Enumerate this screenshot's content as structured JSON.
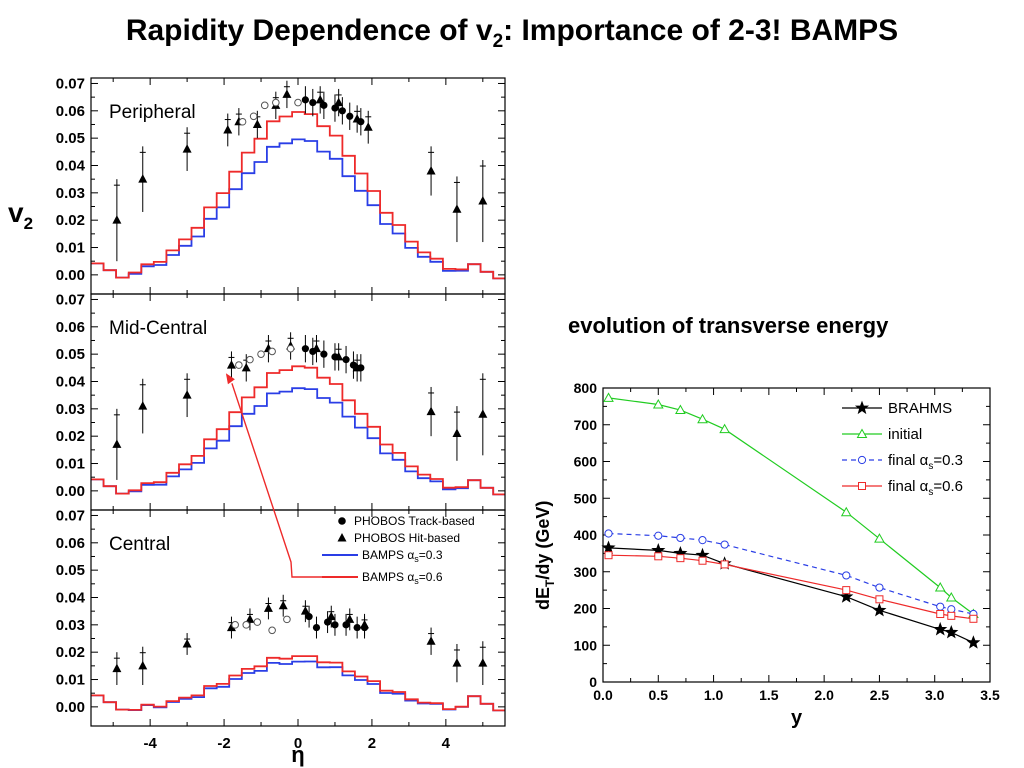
{
  "slide": {
    "title_main": "Rapidity Dependence of v",
    "title_sub": "2",
    "title_rest": ": Importance of 2-3! BAMPS",
    "right_title": "evolution of transverse energy"
  },
  "chart_data": [
    {
      "id": "v2-eta",
      "type": "line",
      "x_label": "η",
      "y_label": "v",
      "y_label_sub": "2",
      "xlim": [
        -5.6,
        5.6
      ],
      "ylim": [
        -0.007,
        0.072
      ],
      "x_ticks": [
        -4,
        -2,
        0,
        2,
        4
      ],
      "x_tick_labels": [
        "-4",
        "-2",
        "0",
        "2",
        "4"
      ],
      "y_ticks": [
        0.0,
        0.01,
        0.02,
        0.03,
        0.04,
        0.05,
        0.06,
        0.07
      ],
      "y_tick_labels": [
        "0.00",
        "0.01",
        "0.02",
        "0.03",
        "0.04",
        "0.05",
        "0.06",
        "0.07"
      ],
      "legend": {
        "track": "PHOBOS Track-based",
        "hit": "PHOBOS Hit-based",
        "bamps03_prefix": "BAMPS α",
        "bamps03_sub": "s",
        "bamps03_suffix": "=0.3",
        "bamps06_prefix": "BAMPS α",
        "bamps06_sub": "s",
        "bamps06_suffix": "=0.6"
      },
      "colors": {
        "bamps03": "#2a3ee6",
        "bamps06": "#ee2a2a"
      },
      "panels": [
        {
          "label": "Peripheral",
          "red_peak": 0.061,
          "blue_peak": 0.051,
          "hit": [
            [
              -4.9,
              0.02,
              0.015
            ],
            [
              -4.2,
              0.035,
              0.012
            ],
            [
              -3.0,
              0.046,
              0.008
            ],
            [
              -1.9,
              0.053,
              0.006
            ],
            [
              -1.6,
              0.056,
              0.005
            ],
            [
              -1.1,
              0.055,
              0.005
            ],
            [
              -0.6,
              0.062,
              0.005
            ],
            [
              -0.3,
              0.066,
              0.005
            ],
            [
              0.6,
              0.064,
              0.005
            ],
            [
              1.1,
              0.063,
              0.005
            ],
            [
              1.6,
              0.057,
              0.005
            ],
            [
              1.9,
              0.054,
              0.006
            ],
            [
              3.6,
              0.038,
              0.009
            ],
            [
              4.3,
              0.024,
              0.012
            ],
            [
              5.0,
              0.027,
              0.015
            ]
          ],
          "track": [
            [
              0.2,
              0.064,
              0.005
            ],
            [
              0.4,
              0.063,
              0.005
            ],
            [
              0.7,
              0.062,
              0.005
            ],
            [
              1.0,
              0.061,
              0.005
            ],
            [
              1.2,
              0.06,
              0.005
            ],
            [
              1.4,
              0.058,
              0.005
            ],
            [
              1.7,
              0.056,
              0.005
            ]
          ],
          "open": [
            [
              -1.5,
              0.056
            ],
            [
              -1.2,
              0.058
            ],
            [
              -0.9,
              0.062
            ],
            [
              -0.6,
              0.063
            ],
            [
              0.0,
              0.063
            ]
          ]
        },
        {
          "label": "Mid-Central",
          "red_peak": 0.047,
          "blue_peak": 0.039,
          "hit": [
            [
              -4.9,
              0.017,
              0.013
            ],
            [
              -4.2,
              0.031,
              0.01
            ],
            [
              -3.0,
              0.035,
              0.008
            ],
            [
              -1.8,
              0.046,
              0.005
            ],
            [
              -1.4,
              0.045,
              0.005
            ],
            [
              -0.8,
              0.052,
              0.005
            ],
            [
              -0.2,
              0.053,
              0.005
            ],
            [
              0.5,
              0.052,
              0.005
            ],
            [
              1.1,
              0.049,
              0.005
            ],
            [
              1.6,
              0.045,
              0.005
            ],
            [
              3.6,
              0.029,
              0.009
            ],
            [
              4.3,
              0.021,
              0.01
            ],
            [
              5.0,
              0.028,
              0.015
            ]
          ],
          "track": [
            [
              0.2,
              0.052,
              0.005
            ],
            [
              0.4,
              0.051,
              0.005
            ],
            [
              0.7,
              0.05,
              0.005
            ],
            [
              1.0,
              0.049,
              0.005
            ],
            [
              1.3,
              0.048,
              0.005
            ],
            [
              1.5,
              0.046,
              0.005
            ],
            [
              1.7,
              0.045,
              0.005
            ]
          ],
          "open": [
            [
              -1.6,
              0.046
            ],
            [
              -1.3,
              0.048
            ],
            [
              -1.0,
              0.05
            ],
            [
              -0.7,
              0.051
            ],
            [
              -0.2,
              0.052
            ]
          ]
        },
        {
          "label": "Central",
          "red_peak": 0.02,
          "blue_peak": 0.018,
          "hit": [
            [
              -4.9,
              0.014,
              0.006
            ],
            [
              -4.2,
              0.015,
              0.007
            ],
            [
              -3.0,
              0.023,
              0.004
            ],
            [
              -1.8,
              0.029,
              0.004
            ],
            [
              -1.3,
              0.032,
              0.004
            ],
            [
              -0.8,
              0.036,
              0.004
            ],
            [
              -0.4,
              0.037,
              0.004
            ],
            [
              0.2,
              0.035,
              0.004
            ],
            [
              0.9,
              0.033,
              0.004
            ],
            [
              1.4,
              0.032,
              0.004
            ],
            [
              1.8,
              0.03,
              0.004
            ],
            [
              3.6,
              0.024,
              0.005
            ],
            [
              4.3,
              0.016,
              0.007
            ],
            [
              5.0,
              0.016,
              0.008
            ]
          ],
          "track": [
            [
              0.3,
              0.033,
              0.004
            ],
            [
              0.5,
              0.029,
              0.004
            ],
            [
              0.8,
              0.031,
              0.004
            ],
            [
              1.0,
              0.03,
              0.004
            ],
            [
              1.3,
              0.03,
              0.004
            ],
            [
              1.6,
              0.029,
              0.004
            ],
            [
              1.8,
              0.029,
              0.004
            ]
          ],
          "open": [
            [
              -1.7,
              0.03
            ],
            [
              -1.4,
              0.03
            ],
            [
              -1.1,
              0.031
            ],
            [
              -0.7,
              0.028
            ],
            [
              -0.3,
              0.032
            ]
          ]
        }
      ]
    },
    {
      "id": "det-dy",
      "type": "line",
      "x_label": "y",
      "y_label_prefix": "dE",
      "y_label_sub": "T",
      "y_label_suffix": "/dy  (GeV)",
      "xlim": [
        0,
        3.5
      ],
      "ylim": [
        0,
        800
      ],
      "x_ticks": [
        0.0,
        0.5,
        1.0,
        1.5,
        2.0,
        2.5,
        3.0,
        3.5
      ],
      "x_tick_labels": [
        "0.0",
        "0.5",
        "1.0",
        "1.5",
        "2.0",
        "2.5",
        "3.0",
        "3.5"
      ],
      "y_ticks": [
        0,
        100,
        200,
        300,
        400,
        500,
        600,
        700,
        800
      ],
      "y_tick_labels": [
        "0",
        "100",
        "200",
        "300",
        "400",
        "500",
        "600",
        "700",
        "800"
      ],
      "series": [
        {
          "name": "BRAHMS",
          "color": "#000000",
          "marker": "star",
          "dash": "",
          "x": [
            0.05,
            0.5,
            0.7,
            0.9,
            1.1,
            2.2,
            2.5,
            3.05,
            3.15,
            3.35
          ],
          "y": [
            365,
            358,
            350,
            345,
            322,
            232,
            195,
            143,
            135,
            107
          ]
        },
        {
          "name": "initial",
          "color": "#21cc21",
          "marker": "triangle",
          "dash": "",
          "x": [
            0.05,
            0.5,
            0.7,
            0.9,
            1.1,
            2.2,
            2.5,
            3.05,
            3.15,
            3.35
          ],
          "y": [
            773,
            755,
            740,
            715,
            688,
            462,
            390,
            257,
            230,
            185
          ]
        },
        {
          "name_prefix": "final α",
          "name_sub": "s",
          "name_suffix": "=0.3",
          "color": "#2a3ee6",
          "marker": "circle",
          "dash": "5,4",
          "x": [
            0.05,
            0.5,
            0.7,
            0.9,
            1.1,
            2.2,
            2.5,
            3.05,
            3.15,
            3.35
          ],
          "y": [
            404,
            398,
            392,
            386,
            374,
            290,
            257,
            205,
            198,
            185
          ]
        },
        {
          "name_prefix": "final α",
          "name_sub": "s",
          "name_suffix": "=0.6",
          "color": "#ee2a2a",
          "marker": "square",
          "dash": "",
          "x": [
            0.05,
            0.5,
            0.7,
            0.9,
            1.1,
            2.2,
            2.5,
            3.05,
            3.15,
            3.35
          ],
          "y": [
            345,
            342,
            337,
            330,
            320,
            250,
            225,
            185,
            180,
            172
          ]
        }
      ]
    }
  ]
}
